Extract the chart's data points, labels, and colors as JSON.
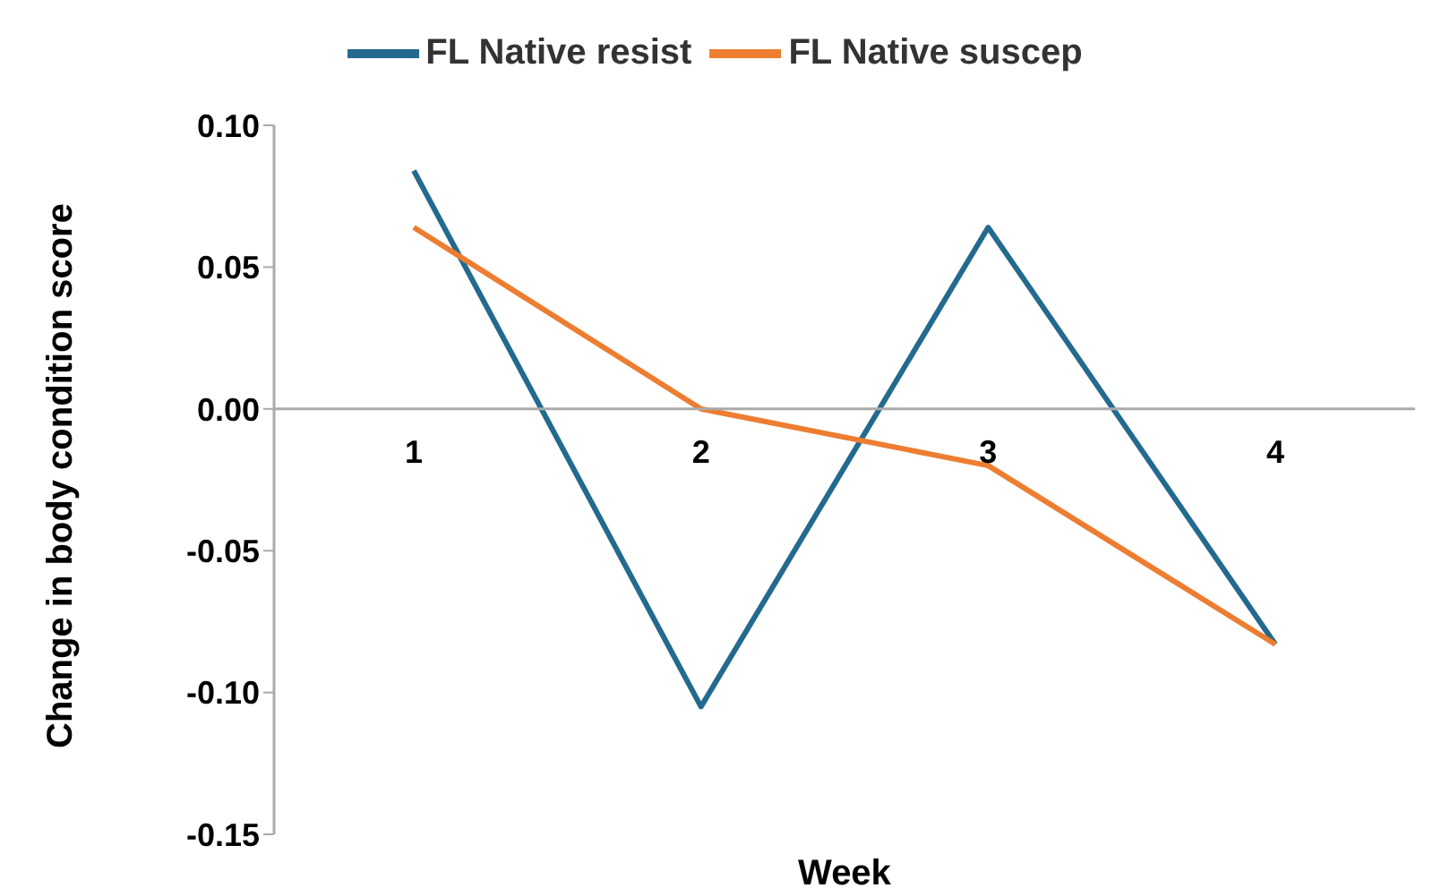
{
  "chart_data": {
    "type": "line",
    "xlabel": "Week",
    "ylabel": "Change in body condition score",
    "categories": [
      "1",
      "2",
      "3",
      "4"
    ],
    "series": [
      {
        "name": "FL Native resist",
        "color": "#236a8e",
        "values": [
          0.084,
          -0.105,
          0.064,
          -0.083
        ]
      },
      {
        "name": "FL Native suscep",
        "color": "#ed7d31",
        "values": [
          0.064,
          0,
          -0.02,
          -0.083
        ]
      }
    ],
    "ylim": [
      -0.15,
      0.1
    ],
    "yticks": [
      {
        "value": -0.15,
        "label": "-0.15"
      },
      {
        "value": -0.1,
        "label": "-0.10"
      },
      {
        "value": -0.05,
        "label": "-0.05"
      },
      {
        "value": 0,
        "label": "0.00"
      },
      {
        "value": 0.05,
        "label": "0.05"
      },
      {
        "value": 0.1,
        "label": "0.10"
      }
    ],
    "grid": false,
    "legend": "top",
    "marker": "none",
    "line_style": "solid"
  }
}
